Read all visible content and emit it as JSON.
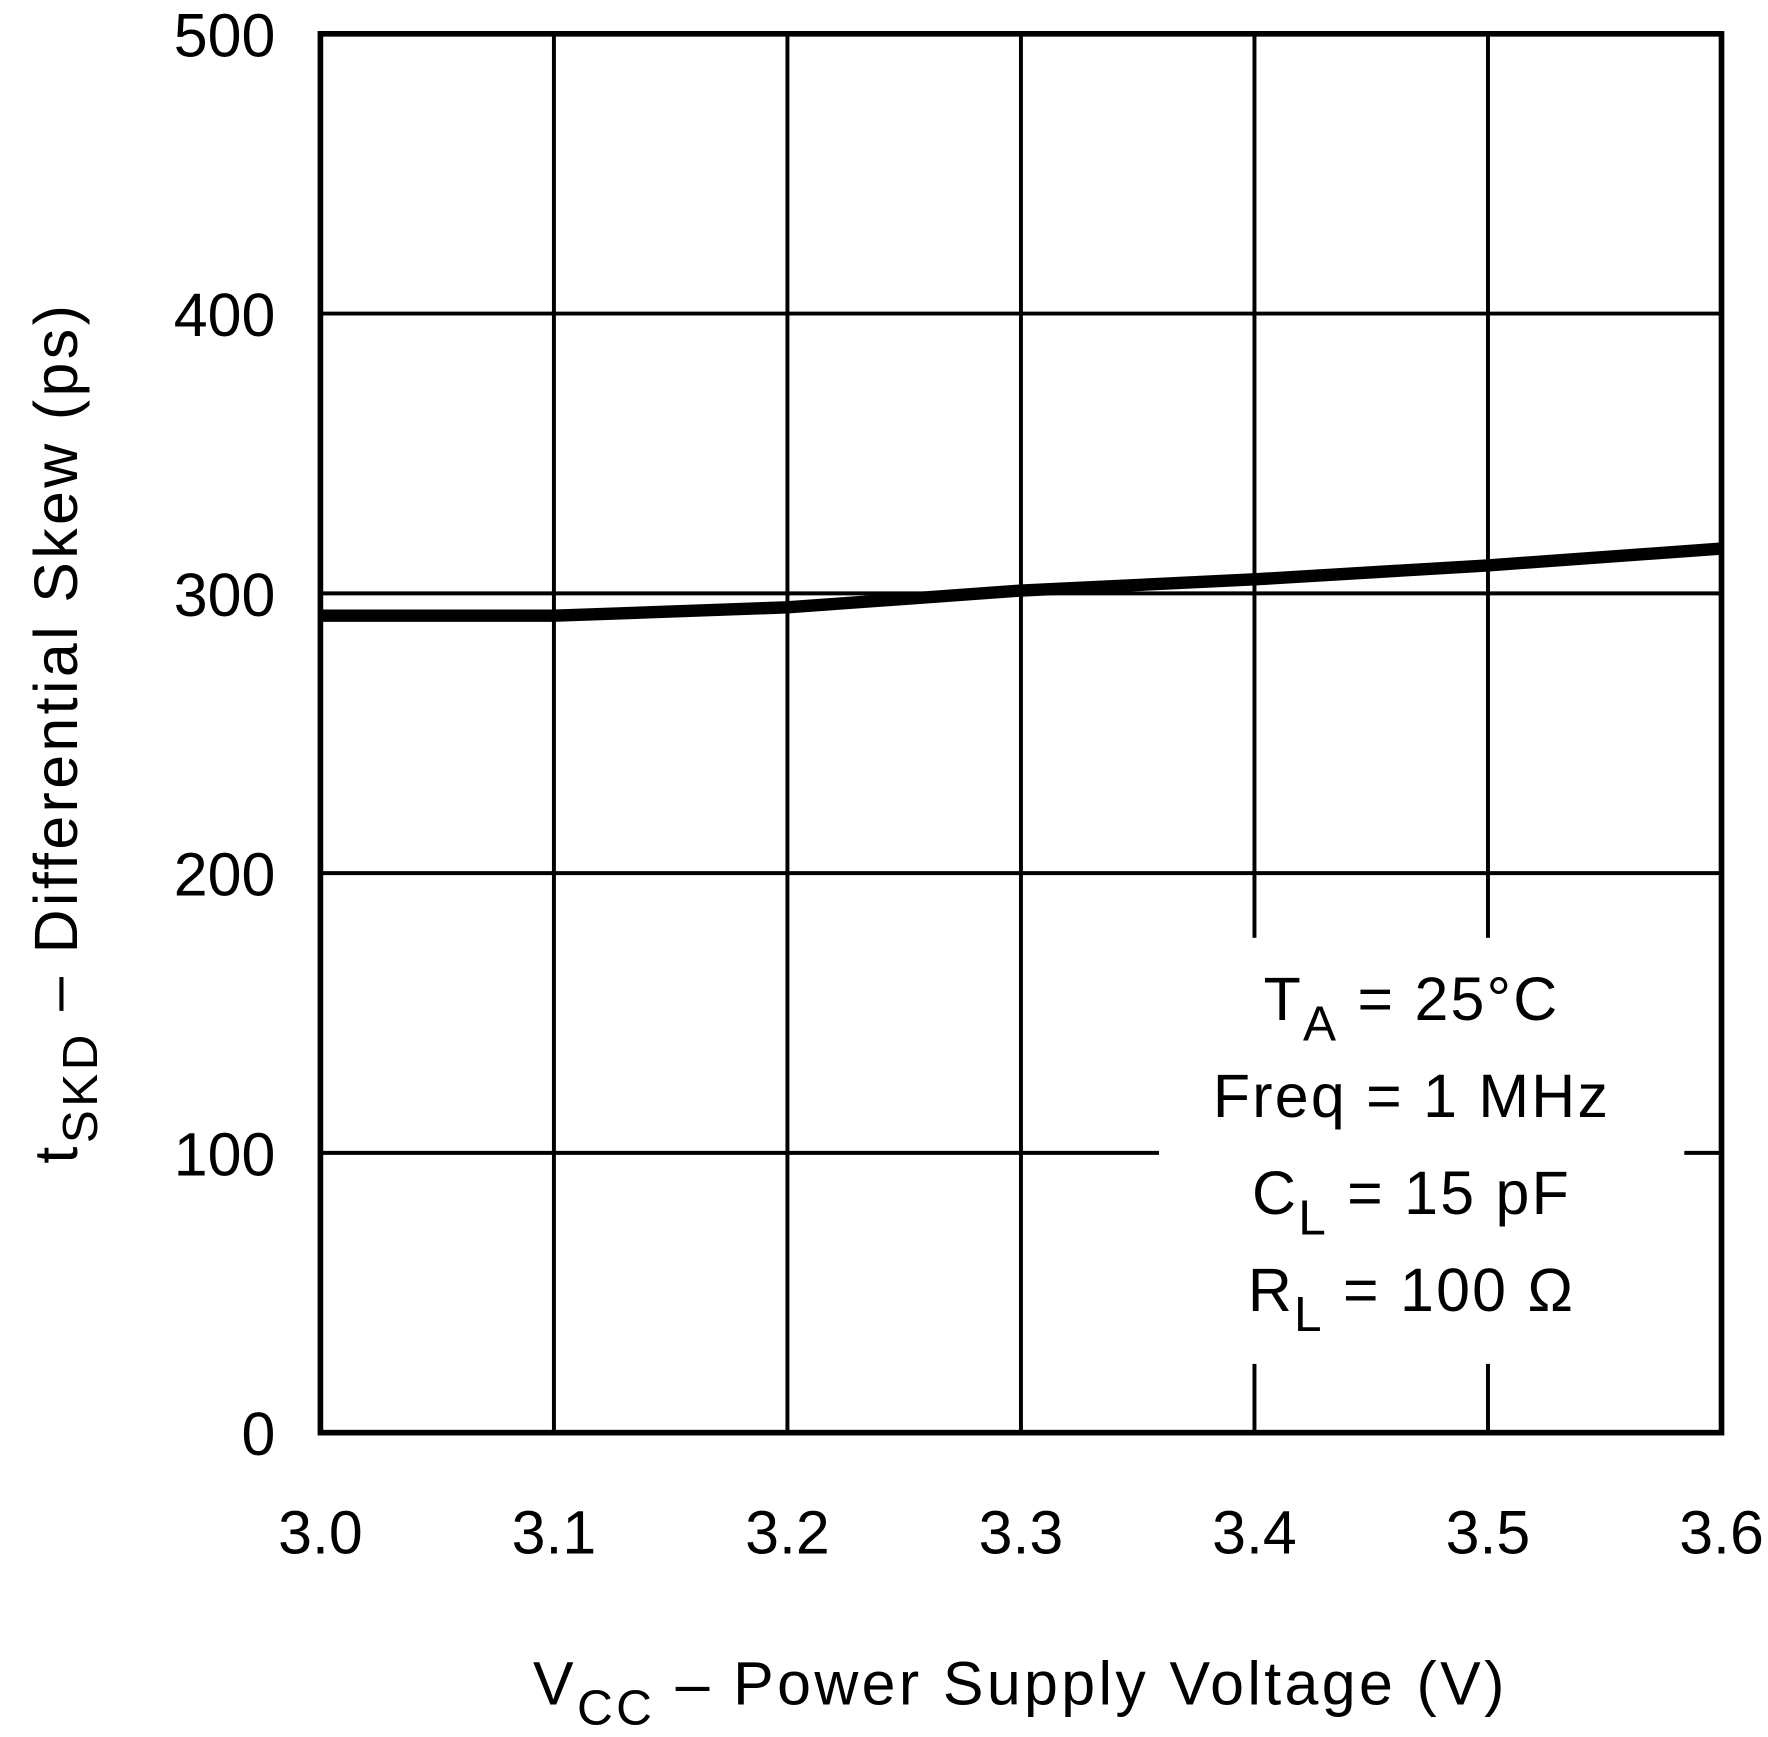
{
  "chart_data": {
    "type": "line",
    "x": [
      3.0,
      3.1,
      3.2,
      3.3,
      3.4,
      3.5,
      3.6
    ],
    "values": [
      292,
      292,
      295,
      301,
      305,
      310,
      316
    ],
    "color": "#000000",
    "xlim": [
      3.0,
      3.6
    ],
    "xticks": [
      {
        "value": 3.0,
        "label": "3.0"
      },
      3.1,
      3.2,
      3.3,
      3.4,
      3.5,
      3.6
    ],
    "ylim": [
      0,
      500
    ],
    "yticks": [
      0,
      100,
      200,
      300,
      400,
      500
    ],
    "grid": true,
    "ylabel": {
      "main": "t",
      "sub": "SKD",
      "rest": " – Differential Skew (ps)"
    },
    "xlabel": {
      "main": "V",
      "sub": "CC",
      "rest": " – Power Supply Voltage (V)"
    },
    "annotations": [
      {
        "main": "T",
        "sub": "A",
        "rest": " = 25°C"
      },
      {
        "main": "Freq = 1 MHz"
      },
      {
        "main": "C",
        "sub": "L",
        "rest": " = 15 pF"
      },
      {
        "main": "R",
        "sub": "L",
        "rest": " = 100 Ω"
      }
    ]
  }
}
